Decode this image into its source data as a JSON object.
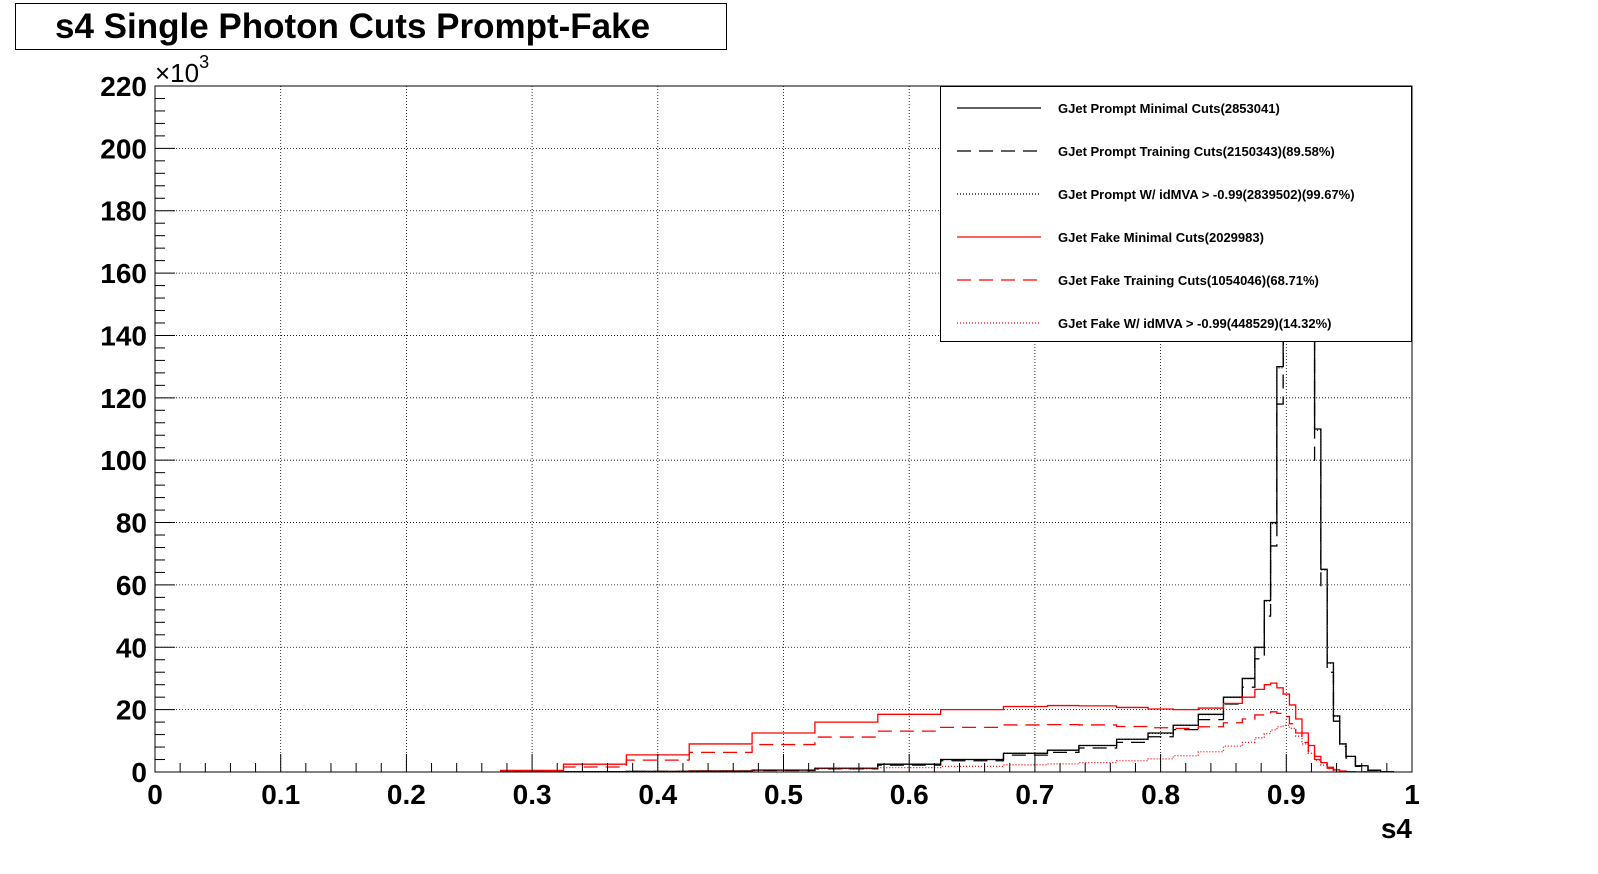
{
  "chart_data": {
    "type": "line",
    "title": "s4 Single Photon Cuts Prompt-Fake",
    "xlabel": "s4",
    "ylabel": "",
    "y_multiplier_label": "×10",
    "y_multiplier_exp": "3",
    "xlim": [
      0,
      1
    ],
    "ylim": [
      0,
      220
    ],
    "grid": true,
    "legend_position": "top-right",
    "x_ticks": [
      "0",
      "0.1",
      "0.2",
      "0.3",
      "0.4",
      "0.5",
      "0.6",
      "0.7",
      "0.8",
      "0.9",
      "1"
    ],
    "y_ticks": [
      "0",
      "20",
      "40",
      "60",
      "80",
      "100",
      "120",
      "140",
      "160",
      "180",
      "200",
      "220"
    ],
    "x": [
      0.3,
      0.35,
      0.4,
      0.45,
      0.5,
      0.55,
      0.6,
      0.65,
      0.7,
      0.72,
      0.75,
      0.78,
      0.8,
      0.82,
      0.84,
      0.86,
      0.87,
      0.88,
      0.885,
      0.89,
      0.895,
      0.9,
      0.905,
      0.91,
      0.915,
      0.92,
      0.925,
      0.93,
      0.935,
      0.94,
      0.945,
      0.95,
      0.96,
      0.97,
      0.98
    ],
    "series": [
      {
        "name": "GJet Prompt Minimal Cuts(2853041)",
        "color": "#000000",
        "dash": "solid",
        "values": [
          0.1,
          0.1,
          0.2,
          0.3,
          0.6,
          1.2,
          2.5,
          4.0,
          6.0,
          7.0,
          8.5,
          10.5,
          12.5,
          15.0,
          18.5,
          24.0,
          30.0,
          40.0,
          55.0,
          80.0,
          130.0,
          235.0,
          240.0,
          210.0,
          190.0,
          160.0,
          110.0,
          65.0,
          35.0,
          18.0,
          9.0,
          5.0,
          2.0,
          0.6,
          0.1
        ]
      },
      {
        "name": "GJet Prompt Training Cuts(2150343)(89.58%)",
        "color": "#000000",
        "dash": "dashed",
        "values": [
          0.1,
          0.1,
          0.2,
          0.3,
          0.5,
          1.0,
          2.2,
          3.6,
          5.4,
          6.3,
          7.7,
          9.5,
          11.3,
          13.6,
          16.8,
          21.8,
          27.2,
          36.3,
          50.0,
          72.5,
          118.0,
          213.0,
          218.0,
          190.0,
          172.0,
          145.0,
          100.0,
          59.0,
          32.0,
          16.3,
          8.2,
          4.5,
          1.8,
          0.5,
          0.1
        ]
      },
      {
        "name": "GJet Prompt W/ idMVA > -0.99(2839502)(99.67%)",
        "color": "#000000",
        "dash": "dotted",
        "values": [
          0.1,
          0.1,
          0.2,
          0.3,
          0.6,
          1.2,
          2.5,
          4.0,
          6.0,
          7.0,
          8.5,
          10.5,
          12.4,
          15.0,
          18.4,
          23.9,
          29.9,
          39.9,
          54.8,
          79.7,
          129.6,
          234.0,
          239.0,
          209.0,
          189.0,
          159.5,
          109.6,
          64.8,
          34.9,
          17.9,
          9.0,
          5.0,
          2.0,
          0.6,
          0.1
        ]
      },
      {
        "name": "GJet Fake Minimal Cuts(2029983)",
        "color": "#ff0000",
        "dash": "solid",
        "values": [
          0.5,
          2.5,
          5.5,
          9.0,
          12.5,
          16.0,
          18.5,
          20.0,
          21.0,
          21.3,
          21.2,
          20.7,
          20.2,
          20.0,
          20.5,
          22.0,
          24.0,
          26.5,
          28.0,
          28.5,
          27.0,
          25.0,
          21.5,
          17.0,
          12.5,
          8.5,
          5.0,
          3.0,
          1.5,
          0.7,
          0.3,
          0.1,
          0.05,
          0.0,
          0.0
        ]
      },
      {
        "name": "GJet Fake Training Cuts(1054046)(68.71%)",
        "color": "#ff0000",
        "dash": "dashed",
        "values": [
          0.3,
          1.6,
          3.8,
          6.3,
          8.8,
          11.2,
          13.1,
          14.3,
          15.1,
          15.2,
          15.1,
          14.6,
          14.2,
          14.0,
          14.5,
          15.8,
          17.0,
          18.3,
          19.0,
          19.3,
          18.8,
          17.8,
          15.5,
          12.5,
          9.5,
          6.5,
          4.0,
          2.3,
          1.2,
          0.5,
          0.2,
          0.1,
          0.05,
          0.0,
          0.0
        ]
      },
      {
        "name": "GJet Fake W/ idMVA > -0.99(448529)(14.32%)",
        "color": "#ff0000",
        "dash": "dotted",
        "values": [
          0.0,
          0.1,
          0.2,
          0.4,
          0.7,
          1.0,
          1.4,
          1.8,
          2.3,
          2.6,
          3.0,
          3.6,
          4.2,
          5.2,
          6.5,
          8.3,
          9.5,
          11.0,
          12.3,
          13.5,
          14.5,
          15.0,
          14.0,
          11.5,
          9.0,
          6.0,
          3.8,
          2.2,
          1.1,
          0.5,
          0.2,
          0.1,
          0.05,
          0.0,
          0.0
        ]
      }
    ]
  }
}
